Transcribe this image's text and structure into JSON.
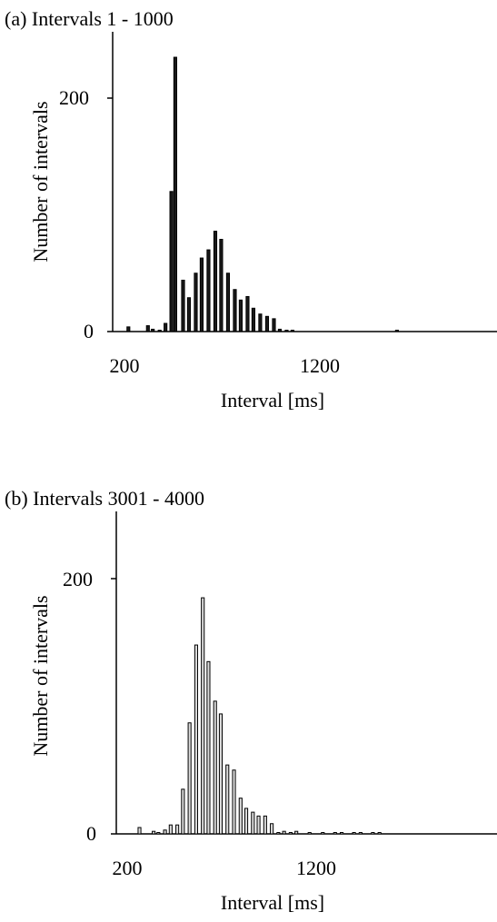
{
  "chart_data": [
    {
      "type": "bar",
      "title": "(a) Intervals 1 - 1000",
      "xlabel": "Interval [ms]",
      "ylabel": "Number of intervals",
      "xlim": [
        200,
        1800
      ],
      "ylim": [
        0,
        240
      ],
      "xticks": [
        "200",
        "1200"
      ],
      "yticks": [
        "0",
        "200"
      ],
      "bar_fill": "#1a1a1a",
      "bar_width_ms": 18,
      "x": [
        220,
        320,
        345,
        380,
        410,
        440,
        460,
        500,
        530,
        565,
        595,
        630,
        665,
        695,
        730,
        765,
        795,
        830,
        860,
        895,
        930,
        965,
        995,
        1030,
        1060,
        1595
      ],
      "values": [
        4,
        5,
        2,
        1,
        7,
        120,
        235,
        44,
        29,
        50,
        63,
        70,
        86,
        79,
        50,
        36,
        27,
        30,
        20,
        15,
        13,
        11,
        2,
        1,
        1,
        1
      ]
    },
    {
      "type": "bar",
      "title": "(b) Intervals 3001 - 4000",
      "xlabel": "Interval [ms]",
      "ylabel": "Number of intervals",
      "xlim": [
        200,
        1800
      ],
      "ylim": [
        0,
        240
      ],
      "xticks": [
        "200",
        "1200"
      ],
      "yticks": [
        "0",
        "200"
      ],
      "bar_fill": "#dcdcdc",
      "bar_width_ms": 18,
      "x": [
        265,
        340,
        365,
        400,
        430,
        465,
        495,
        530,
        565,
        600,
        630,
        665,
        695,
        730,
        765,
        800,
        830,
        865,
        895,
        930,
        965,
        1000,
        1030,
        1065,
        1095,
        1165,
        1235,
        1300,
        1335,
        1400,
        1435,
        1500,
        1535
      ],
      "values": [
        5,
        2,
        1,
        3,
        7,
        7,
        35,
        87,
        148,
        185,
        135,
        104,
        94,
        54,
        50,
        28,
        20,
        17,
        14,
        14,
        8,
        1,
        2,
        1,
        2,
        1,
        1,
        1,
        1,
        1,
        1,
        1,
        1
      ]
    }
  ]
}
